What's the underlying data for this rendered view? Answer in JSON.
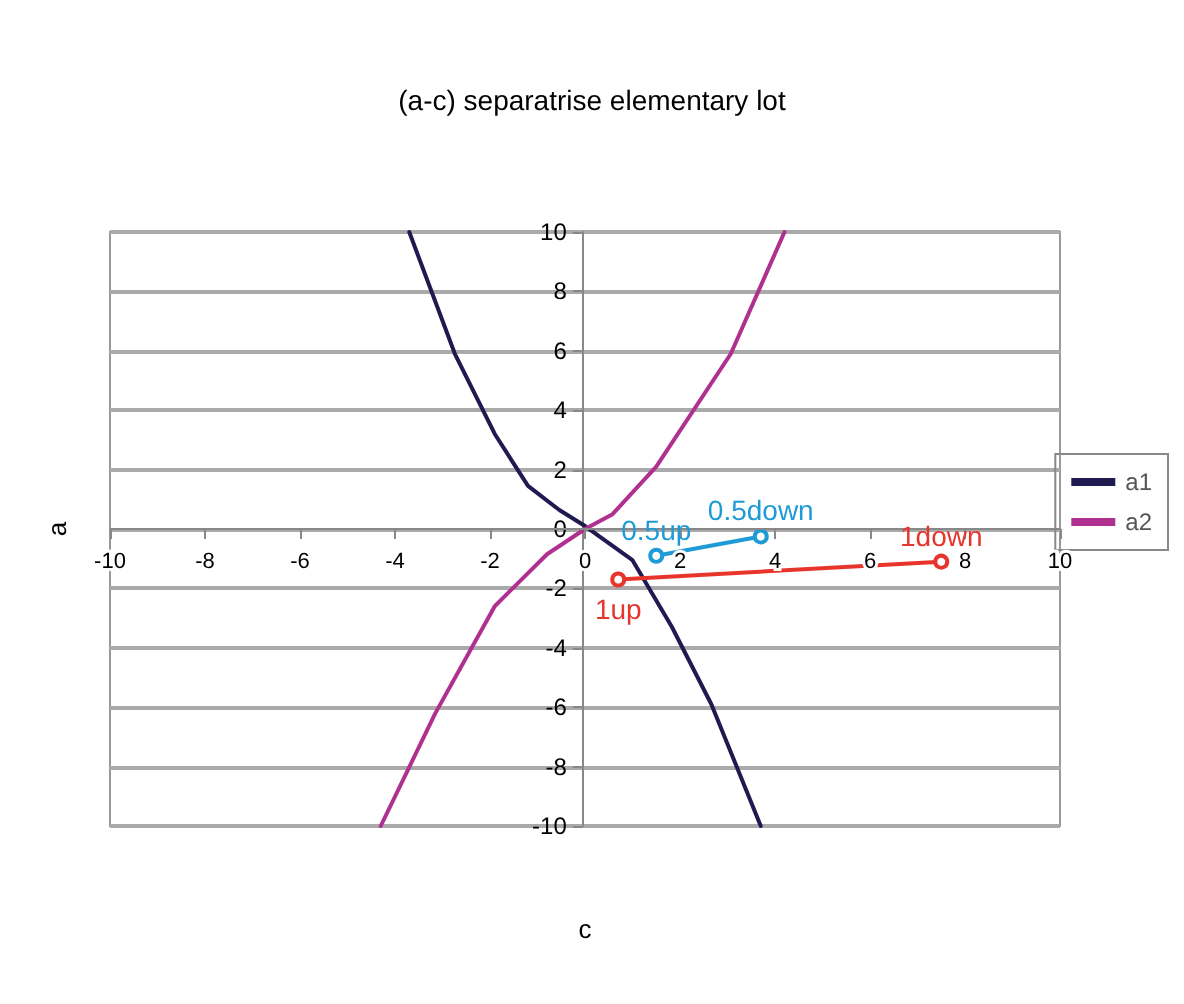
{
  "chart_data": {
    "type": "line",
    "title": "(a-c) separatrise elementary lot",
    "xlabel": "c",
    "ylabel": "a",
    "xlim": [
      -10,
      10
    ],
    "xticks": [
      -10,
      -8,
      -6,
      -4,
      -2,
      0,
      2,
      4,
      6,
      8,
      10
    ],
    "ylim": [
      -10,
      10
    ],
    "yticks": [
      -10,
      -8,
      -6,
      -4,
      -2,
      0,
      2,
      4,
      6,
      8,
      10
    ],
    "grid": "y",
    "legend": "right",
    "series": [
      {
        "name": "a1",
        "color": "#1f1a4f",
        "marker": "none",
        "x": [
          -3.7,
          -2.74,
          -1.9,
          -1.2,
          -0.54,
          0,
          1.0,
          1.83,
          2.66,
          3.7
        ],
        "values": [
          10,
          5.9,
          3.2,
          1.45,
          0.64,
          0.1,
          -1.05,
          -3.3,
          -5.9,
          -10
        ]
      },
      {
        "name": "a2",
        "color": "#b0308f",
        "marker": "none",
        "x": [
          -4.3,
          -3.15,
          -1.9,
          -0.8,
          0,
          0.58,
          1.5,
          3.07,
          4.2
        ],
        "values": [
          -10,
          -6.2,
          -2.6,
          -0.85,
          0,
          0.5,
          2.1,
          5.9,
          10
        ]
      },
      {
        "color": "#1e9bd7",
        "marker": "circle",
        "x": [
          1.5,
          3.7
        ],
        "values": [
          -0.9,
          -0.25
        ]
      },
      {
        "color": "#e8352b",
        "marker": "circle",
        "x": [
          0.7,
          7.5
        ],
        "values": [
          -1.7,
          -1.1
        ]
      }
    ],
    "annotations": [
      {
        "text": "0.5up",
        "x": 1.5,
        "y": -0.9
      },
      {
        "text": "0.5down",
        "x": 3.7,
        "y": -0.25
      },
      {
        "text": "1down",
        "x": 7.5,
        "y": -1.1
      },
      {
        "text": "1up",
        "x": 0.7,
        "y": -1.7
      }
    ]
  }
}
